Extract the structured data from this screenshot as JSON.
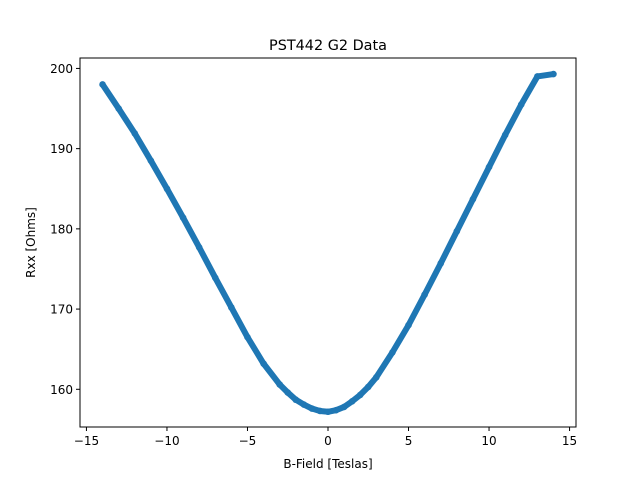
{
  "chart_data": {
    "type": "scatter",
    "title": "PST442 G2 Data",
    "xlabel": "B-Field [Teslas]",
    "ylabel": "Rxx [Ohms]",
    "xlim": [
      -15.4,
      15.4
    ],
    "ylim": [
      155.3,
      201.3
    ],
    "xticks": [
      -15,
      -10,
      -5,
      0,
      5,
      10,
      15
    ],
    "xtick_labels": [
      "−15",
      "−10",
      "−5",
      "0",
      "5",
      "10",
      "15"
    ],
    "yticks": [
      160,
      170,
      180,
      190,
      200
    ],
    "ytick_labels": [
      "160",
      "170",
      "180",
      "190",
      "200"
    ],
    "grid": false,
    "legend": "none",
    "color": "#1f77b4",
    "series": [
      {
        "x": [
          -14.0,
          -13.0,
          -12.0,
          -11.0,
          -10.0,
          -9.0,
          -8.0,
          -7.0,
          -6.0,
          -5.0,
          -4.0,
          -3.0,
          -2.5,
          -2.0,
          -1.5,
          -1.0,
          -0.5,
          0.0,
          0.5,
          1.0,
          1.5,
          2.0,
          2.5,
          3.0,
          4.0,
          5.0,
          6.0,
          7.0,
          8.0,
          9.0,
          10.0,
          11.0,
          12.0,
          13.0,
          14.0
        ],
        "y": [
          198.0,
          195.0,
          191.9,
          188.5,
          185.0,
          181.4,
          177.7,
          173.9,
          170.2,
          166.5,
          163.2,
          160.6,
          159.6,
          158.7,
          158.1,
          157.6,
          157.3,
          157.2,
          157.4,
          157.8,
          158.5,
          159.3,
          160.3,
          161.5,
          164.6,
          168.0,
          171.8,
          175.7,
          179.7,
          183.7,
          187.7,
          191.7,
          195.5,
          199.0,
          199.3
        ]
      }
    ]
  }
}
